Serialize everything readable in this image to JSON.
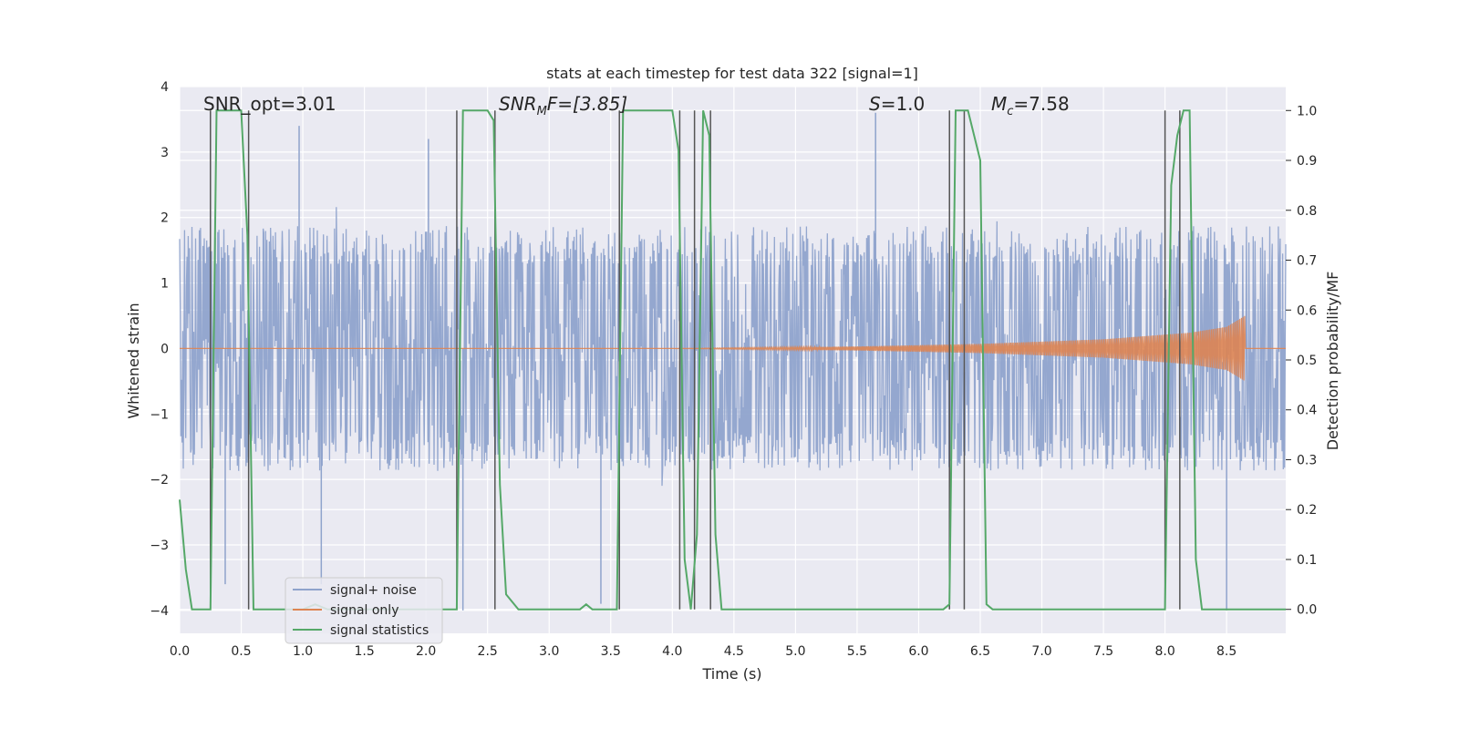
{
  "chart_data": {
    "type": "line",
    "title": "stats at each timestep for test data 322 [signal=1]",
    "xlabel": "Time (s)",
    "ylabel_left": "Whitened strain",
    "ylabel_right": "Detection probability/MF",
    "xlim": [
      0.0,
      8.98
    ],
    "ylim_left": [
      -4.35,
      4.0
    ],
    "ylim_right": [
      -0.048,
      1.048
    ],
    "x_ticks": [
      "0.0",
      "0.5",
      "1.0",
      "1.5",
      "2.0",
      "2.5",
      "3.0",
      "3.5",
      "4.0",
      "4.5",
      "5.0",
      "5.5",
      "6.0",
      "6.5",
      "7.0",
      "7.5",
      "8.0",
      "8.5"
    ],
    "x_tick_values": [
      0.0,
      0.5,
      1.0,
      1.5,
      2.0,
      2.5,
      3.0,
      3.5,
      4.0,
      4.5,
      5.0,
      5.5,
      6.0,
      6.5,
      7.0,
      7.5,
      8.0,
      8.5
    ],
    "y_left_ticks": [
      "−4",
      "−3",
      "−2",
      "−1",
      "0",
      "1",
      "2",
      "3",
      "4"
    ],
    "y_left_tick_values": [
      -4,
      -3,
      -2,
      -1,
      0,
      1,
      2,
      3,
      4
    ],
    "y_right_ticks": [
      "0.0",
      "0.1",
      "0.2",
      "0.3",
      "0.4",
      "0.5",
      "0.6",
      "0.7",
      "0.8",
      "0.9",
      "1.0"
    ],
    "y_right_tick_values": [
      0.0,
      0.1,
      0.2,
      0.3,
      0.4,
      0.5,
      0.6,
      0.7,
      0.8,
      0.9,
      1.0
    ],
    "annotations": {
      "snr_opt": "SNR_opt=3.01",
      "snr_mf_sym": "SNR",
      "snr_mf_sub": "M",
      "snr_mf_rest": "F=[3.85]",
      "s_sym": "S",
      "s_rest": "=1.0",
      "mc_sym": "M",
      "mc_sub": "c",
      "mc_rest": "=7.58"
    },
    "legend": {
      "placement": "lower-left",
      "entries": [
        "signal+ noise",
        "signal only",
        "signal statistics"
      ]
    },
    "colors": {
      "background": "#eaeaf2",
      "grid": "#ffffff",
      "noise": "#8fa3cc",
      "signal": "#dd8452",
      "stats": "#55a868",
      "vlines": "#555555"
    },
    "series": [
      {
        "name": "signal+ noise",
        "kind": "noise-envelope",
        "envelope": 1.7,
        "peak_extremes": [
          [
            0.97,
            3.4
          ],
          [
            2.02,
            3.2
          ],
          [
            2.3,
            -4.0
          ],
          [
            3.42,
            -3.9
          ],
          [
            5.65,
            3.6
          ],
          [
            8.5,
            -4.0
          ],
          [
            1.15,
            -3.6
          ],
          [
            0.37,
            -3.6
          ]
        ]
      },
      {
        "name": "signal only",
        "kind": "chirp",
        "x_start": 4.0,
        "x_peak": 8.65,
        "amplitude": [
          [
            4.0,
            0.0
          ],
          [
            5.5,
            0.03
          ],
          [
            6.5,
            0.07
          ],
          [
            7.5,
            0.14
          ],
          [
            8.2,
            0.24
          ],
          [
            8.5,
            0.33
          ],
          [
            8.65,
            0.5
          ]
        ]
      },
      {
        "name": "signal statistics",
        "axis": "right",
        "x": [
          0.0,
          0.05,
          0.1,
          0.2,
          0.25,
          0.3,
          0.5,
          0.55,
          0.6,
          0.75,
          0.85,
          1.0,
          1.1,
          1.2,
          2.0,
          2.25,
          2.3,
          2.35,
          2.5,
          2.55,
          2.6,
          2.65,
          2.75,
          3.0,
          3.1,
          3.25,
          3.3,
          3.35,
          3.55,
          3.6,
          3.65,
          3.75,
          4.0,
          4.05,
          4.1,
          4.15,
          4.2,
          4.25,
          4.3,
          4.35,
          4.4,
          4.45,
          4.6,
          4.7,
          6.2,
          6.25,
          6.3,
          6.37,
          6.4,
          6.5,
          6.55,
          6.6,
          7.95,
          8.0,
          8.05,
          8.1,
          8.15,
          8.2,
          8.25,
          8.3,
          8.98
        ],
        "values": [
          0.22,
          0.08,
          0.0,
          0.0,
          0.0,
          1.0,
          1.0,
          0.75,
          0.0,
          0.0,
          0.0,
          0.0,
          0.01,
          0.0,
          0.0,
          0.0,
          1.0,
          1.0,
          1.0,
          0.98,
          0.25,
          0.03,
          0.0,
          0.0,
          0.0,
          0.0,
          0.01,
          0.0,
          0.0,
          1.0,
          1.0,
          1.0,
          1.0,
          0.92,
          0.1,
          0.0,
          0.15,
          1.0,
          0.95,
          0.15,
          0.0,
          0.0,
          0.0,
          0.0,
          0.0,
          0.01,
          1.0,
          1.0,
          1.0,
          0.9,
          0.01,
          0.0,
          0.0,
          0.0,
          0.85,
          0.95,
          1.0,
          1.0,
          0.1,
          0.0,
          0.0
        ]
      }
    ],
    "vertical_lines_x": [
      0.25,
      0.56,
      2.25,
      2.56,
      3.57,
      4.06,
      4.18,
      4.31,
      6.25,
      6.37,
      8.0,
      8.12
    ]
  }
}
